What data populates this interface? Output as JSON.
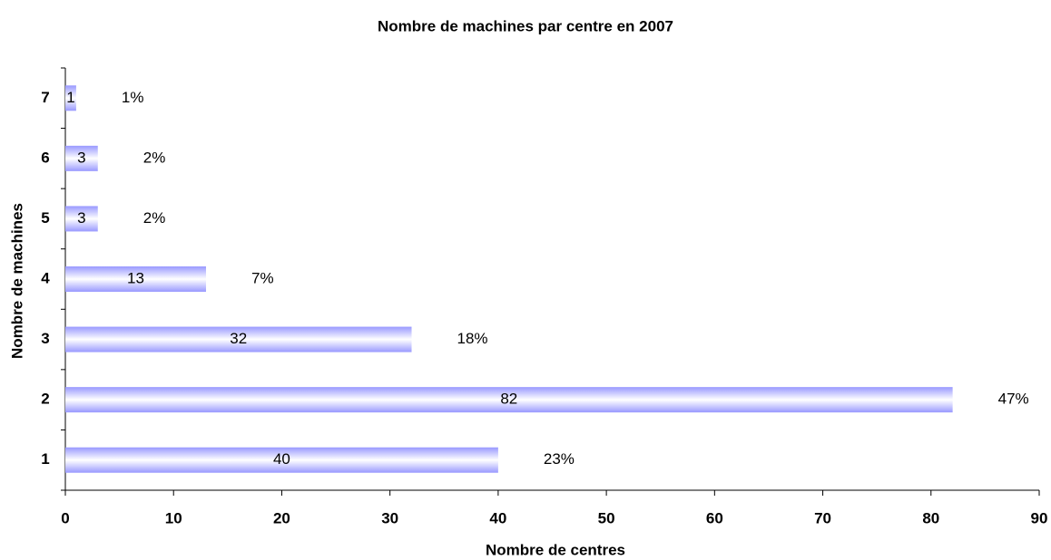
{
  "chart_data": {
    "type": "bar",
    "orientation": "horizontal",
    "title": "Nombre de machines par centre en 2007",
    "xlabel": "Nombre de centres",
    "ylabel": "Nombre de machines",
    "categories": [
      "1",
      "2",
      "3",
      "4",
      "5",
      "6",
      "7"
    ],
    "values": [
      40,
      82,
      32,
      13,
      3,
      3,
      1
    ],
    "percent_labels": [
      "23%",
      "47%",
      "18%",
      "7%",
      "2%",
      "2%",
      "1%"
    ],
    "color": "#9999ff",
    "xlim": [
      0,
      90
    ],
    "xticks": [
      0,
      10,
      20,
      30,
      40,
      50,
      60,
      70,
      80,
      90
    ],
    "grid": false
  }
}
